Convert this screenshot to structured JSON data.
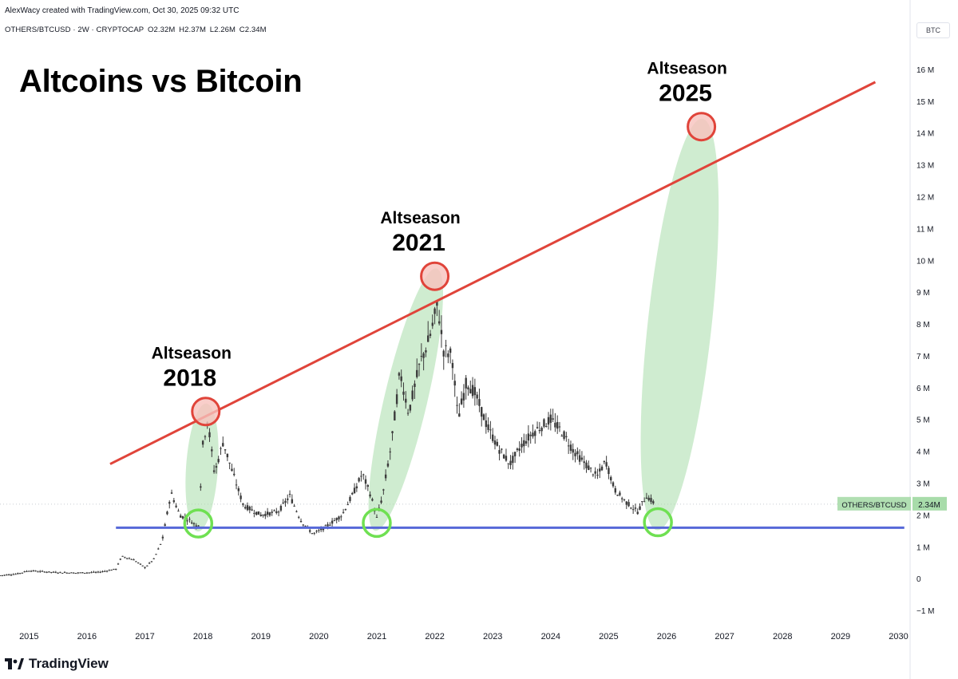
{
  "header": {
    "created_by": "AlexWacy created with TradingView.com, Oct 30, 2025 09:32 UTC"
  },
  "symbol_bar": {
    "symbol": "OTHERS/BTCUSD · 2W · CRYPTOCAP",
    "open": "O2.32M",
    "high": "H2.37M",
    "low": "L2.26M",
    "close": "C2.34M"
  },
  "currency": "BTC",
  "footer": {
    "brand": "TradingView"
  },
  "colors": {
    "resistance_line": "#e0443a",
    "support_line": "#5668d8",
    "highlight_fill": "#a8dcaa",
    "bottom_marker": "#6fe052",
    "top_marker": "#e0443a",
    "candle": "#3b3b3b"
  },
  "chart_data": {
    "type": "candlestick",
    "title": "Altcoins vs Bitcoin",
    "x_tick_labels": [
      "2015",
      "2016",
      "2017",
      "2018",
      "2019",
      "2020",
      "2021",
      "2022",
      "2023",
      "2024",
      "2025",
      "2026",
      "2027",
      "2028",
      "2029",
      "2030"
    ],
    "y_tick_labels": [
      "16 M",
      "15 M",
      "14 M",
      "13 M",
      "12 M",
      "11 M",
      "10 M",
      "9 M",
      "8 M",
      "7 M",
      "6 M",
      "5 M",
      "4 M",
      "3 M",
      "2 M",
      "1 M",
      "0",
      "−1 M"
    ],
    "ylim_millions": [
      -1.5,
      16.8
    ],
    "xlim_years": [
      2014.5,
      2030.2
    ],
    "price_series_millions": [
      {
        "x": 2014.5,
        "y": 0.1
      },
      {
        "x": 2014.8,
        "y": 0.15
      },
      {
        "x": 2015.0,
        "y": 0.25
      },
      {
        "x": 2015.4,
        "y": 0.2
      },
      {
        "x": 2015.8,
        "y": 0.18
      },
      {
        "x": 2016.2,
        "y": 0.2
      },
      {
        "x": 2016.5,
        "y": 0.3
      },
      {
        "x": 2016.6,
        "y": 0.7
      },
      {
        "x": 2016.8,
        "y": 0.6
      },
      {
        "x": 2017.0,
        "y": 0.35
      },
      {
        "x": 2017.15,
        "y": 0.6
      },
      {
        "x": 2017.3,
        "y": 1.2
      },
      {
        "x": 2017.45,
        "y": 2.7
      },
      {
        "x": 2017.6,
        "y": 2.0
      },
      {
        "x": 2017.8,
        "y": 1.8
      },
      {
        "x": 2017.92,
        "y": 1.6
      },
      {
        "x": 2018.0,
        "y": 4.2
      },
      {
        "x": 2018.08,
        "y": 5.0
      },
      {
        "x": 2018.2,
        "y": 3.3
      },
      {
        "x": 2018.35,
        "y": 4.3
      },
      {
        "x": 2018.5,
        "y": 3.4
      },
      {
        "x": 2018.7,
        "y": 2.3
      },
      {
        "x": 2019.0,
        "y": 2.0
      },
      {
        "x": 2019.3,
        "y": 2.1
      },
      {
        "x": 2019.5,
        "y": 2.6
      },
      {
        "x": 2019.7,
        "y": 1.8
      },
      {
        "x": 2019.9,
        "y": 1.4
      },
      {
        "x": 2020.1,
        "y": 1.6
      },
      {
        "x": 2020.4,
        "y": 2.0
      },
      {
        "x": 2020.6,
        "y": 2.7
      },
      {
        "x": 2020.75,
        "y": 3.3
      },
      {
        "x": 2020.9,
        "y": 2.6
      },
      {
        "x": 2021.0,
        "y": 1.9
      },
      {
        "x": 2021.1,
        "y": 2.6
      },
      {
        "x": 2021.25,
        "y": 4.2
      },
      {
        "x": 2021.4,
        "y": 6.5
      },
      {
        "x": 2021.55,
        "y": 5.2
      },
      {
        "x": 2021.75,
        "y": 6.8
      },
      {
        "x": 2021.9,
        "y": 7.5
      },
      {
        "x": 2022.05,
        "y": 8.6
      },
      {
        "x": 2022.15,
        "y": 7.2
      },
      {
        "x": 2022.3,
        "y": 7.0
      },
      {
        "x": 2022.4,
        "y": 5.0
      },
      {
        "x": 2022.55,
        "y": 6.2
      },
      {
        "x": 2022.7,
        "y": 5.8
      },
      {
        "x": 2022.9,
        "y": 4.8
      },
      {
        "x": 2023.1,
        "y": 4.1
      },
      {
        "x": 2023.3,
        "y": 3.6
      },
      {
        "x": 2023.5,
        "y": 4.2
      },
      {
        "x": 2023.7,
        "y": 4.6
      },
      {
        "x": 2024.0,
        "y": 5.0
      },
      {
        "x": 2024.2,
        "y": 4.6
      },
      {
        "x": 2024.4,
        "y": 4.0
      },
      {
        "x": 2024.6,
        "y": 3.6
      },
      {
        "x": 2024.8,
        "y": 3.2
      },
      {
        "x": 2024.95,
        "y": 3.7
      },
      {
        "x": 2025.1,
        "y": 2.8
      },
      {
        "x": 2025.3,
        "y": 2.4
      },
      {
        "x": 2025.5,
        "y": 2.1
      },
      {
        "x": 2025.65,
        "y": 2.6
      },
      {
        "x": 2025.8,
        "y": 2.34
      }
    ],
    "support_line": {
      "value_millions": 1.6,
      "x_from": 2016.5,
      "x_to": 2030.1
    },
    "resistance_line": {
      "from": {
        "x": 2016.4,
        "y": 3.6
      },
      "to": {
        "x": 2029.6,
        "y": 15.6
      }
    },
    "last_price_label": {
      "symbol": "OTHERS/BTCUSD",
      "value": "2.34M",
      "value_millions": 2.34
    },
    "annotations": [
      {
        "label": "Altseason",
        "year": "2018",
        "top": {
          "x": 2018.05,
          "y": 5.25
        },
        "bottom": {
          "x": 2017.92,
          "y": 1.73
        }
      },
      {
        "label": "Altseason",
        "year": "2021",
        "top": {
          "x": 2022.0,
          "y": 9.5
        },
        "bottom": {
          "x": 2021.0,
          "y": 1.75
        }
      },
      {
        "label": "Altseason",
        "year": "2025",
        "top": {
          "x": 2026.6,
          "y": 14.2
        },
        "bottom": {
          "x": 2025.85,
          "y": 1.77
        }
      }
    ]
  }
}
